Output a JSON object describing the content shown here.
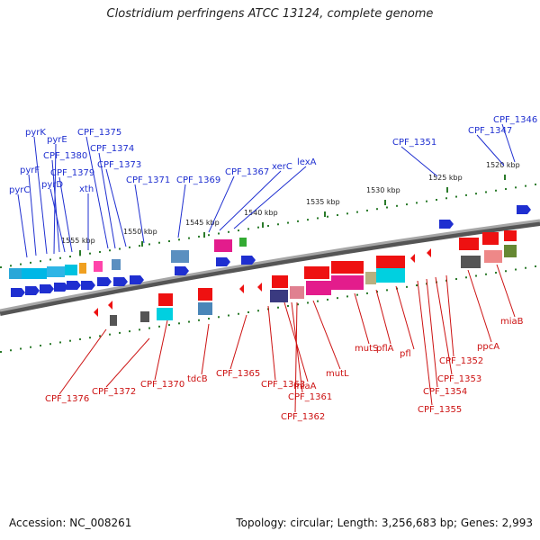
{
  "title": "Clostridium perfringens ATCC 13124, complete genome",
  "footer": {
    "accession": "Accession: NC_008261",
    "topology": "Topology: circular; Length: 3,256,683 bp; Genes: 2,993"
  },
  "colors": {
    "plus_label": "#1f2fd0",
    "minus_label": "#cc1111",
    "backbone": "#808080",
    "tick": "#2a7a2a"
  },
  "scale_ticks": [
    "1520 kbp",
    "1525 kbp",
    "1530 kbp",
    "1535 kbp",
    "1540 kbp",
    "1545 kbp",
    "1550 kbp",
    "1555 kbp"
  ],
  "plus_labels": [
    "pyrC",
    "pyrF",
    "pyrK",
    "pyrE",
    "CPF_1380",
    "pyrD",
    "CPF_1379",
    "xth",
    "CPF_1375",
    "CPF_1374",
    "CPF_1373",
    "CPF_1371",
    "CPF_1369",
    "CPF_1367",
    "xerC",
    "lexA",
    "CPF_1351",
    "CPF_1347",
    "CPF_1346"
  ],
  "minus_labels": [
    "CPF_1376",
    "CPF_1372",
    "CPF_1370",
    "tdcB",
    "CPF_1365",
    "CPF_1363",
    "miaA",
    "CPF_1361",
    "CPF_1362",
    "mutL",
    "mutS",
    "pflA",
    "pfl",
    "CPF_1355",
    "CPF_1354",
    "CPF_1353",
    "CPF_1352",
    "ppcA",
    "miaB"
  ]
}
